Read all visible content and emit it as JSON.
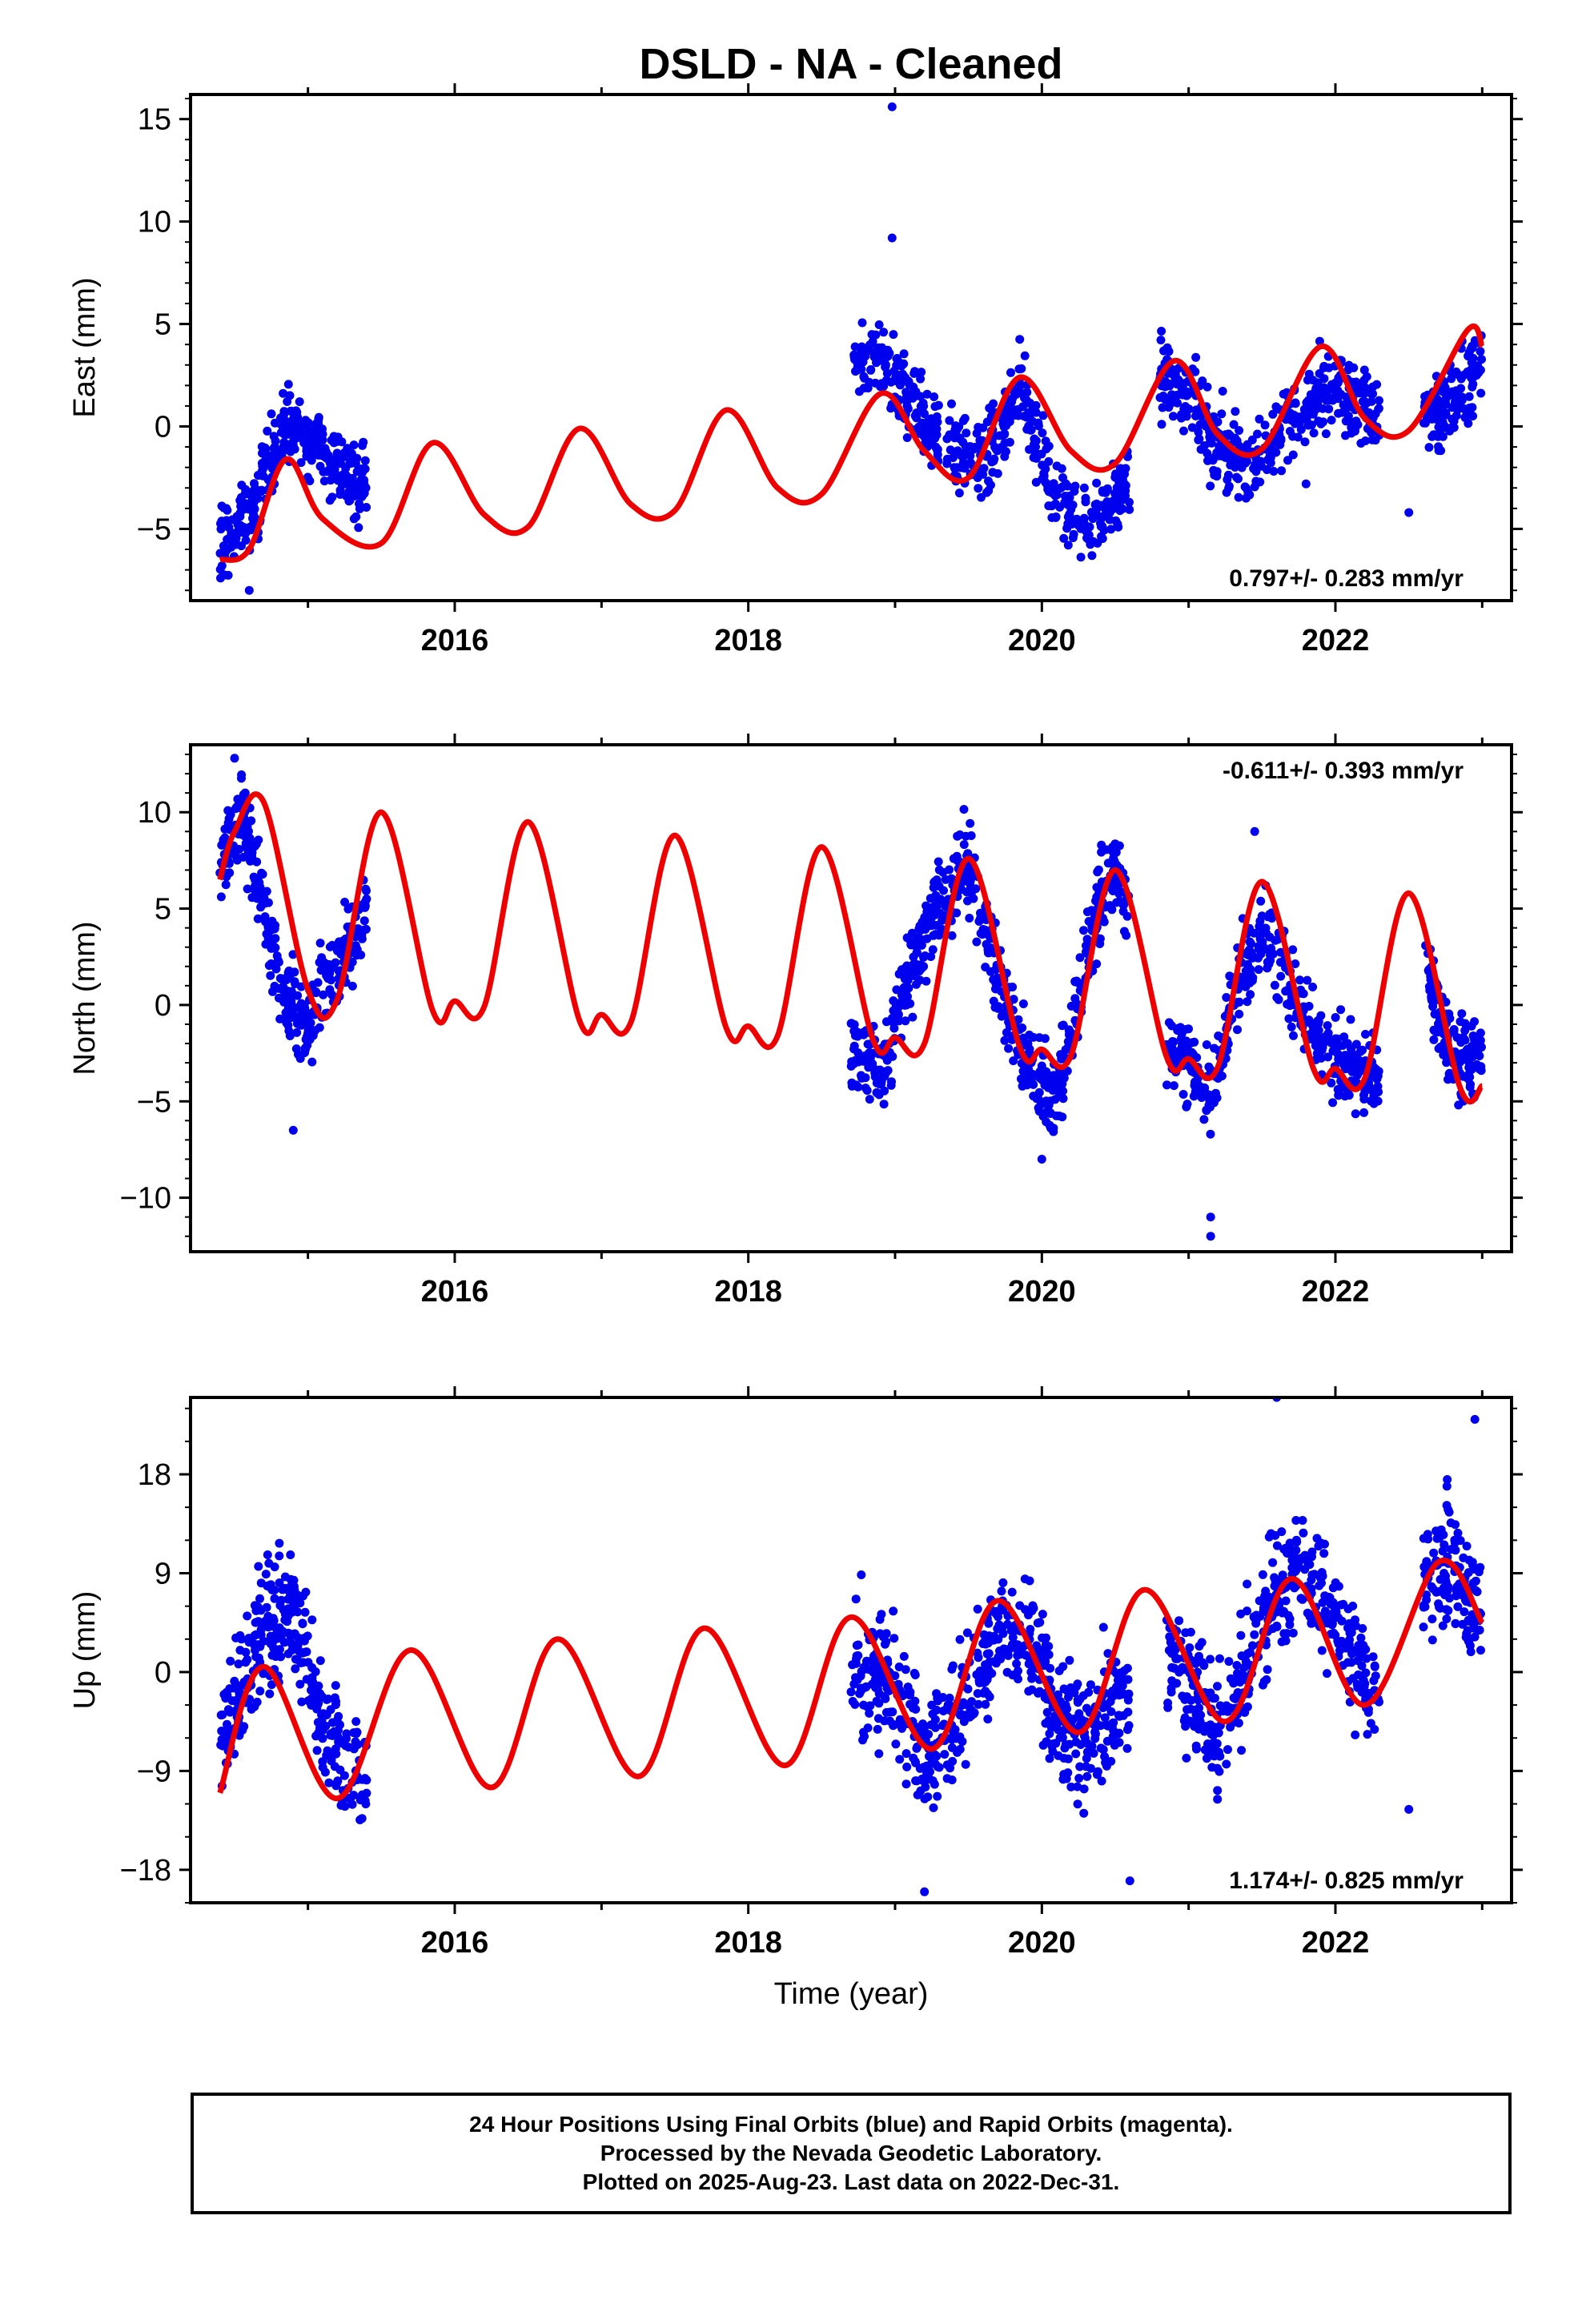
{
  "title": "DSLD  - NA - Cleaned",
  "colors": {
    "data": "#0000ee",
    "model": "#ee0000",
    "frame": "#000000"
  },
  "chart_data": [
    {
      "type": "scatter",
      "ylabel": "East (mm)",
      "xlabel": "",
      "ylim": [
        -8.5,
        16.2
      ],
      "yticks": [
        -5,
        0,
        5,
        10,
        15
      ],
      "xlim": [
        2014.2,
        2023.2
      ],
      "xticks": [
        2016,
        2018,
        2020,
        2022
      ],
      "rate": "0.797+/- 0.283 mm/yr",
      "rate_position": "bottom-right",
      "model": {
        "x": [
          2014.4,
          2014.6,
          2014.85,
          2015.1,
          2015.5,
          2015.85,
          2016.2,
          2016.5,
          2016.85,
          2017.2,
          2017.5,
          2017.85,
          2018.2,
          2018.5,
          2018.9,
          2019.2,
          2019.5,
          2019.85,
          2020.2,
          2020.5,
          2020.9,
          2021.2,
          2021.5,
          2021.9,
          2022.2,
          2022.5,
          2022.9,
          2023.0
        ],
        "y": [
          -6.5,
          -6.0,
          -1.6,
          -4.5,
          -5.7,
          -0.8,
          -4.3,
          -4.9,
          -0.1,
          -3.8,
          -4.1,
          0.8,
          -3.0,
          -3.3,
          1.6,
          -1.2,
          -2.5,
          2.4,
          -1.2,
          -1.8,
          3.2,
          -0.4,
          -1.1,
          3.9,
          0.4,
          -0.2,
          4.7,
          3.9
        ]
      },
      "segments": [
        {
          "x0": 2014.4,
          "x1": 2015.4,
          "center": [
            2014.4,
            -5.5,
            2014.6,
            -4.5,
            2014.85,
            0.0,
            2015.1,
            -1.0,
            2015.4,
            -3.0
          ],
          "spread": 1.3,
          "n": 330
        },
        {
          "x0": 2018.72,
          "x1": 2019.3,
          "center": [
            2018.72,
            3.0,
            2018.9,
            3.5,
            2019.1,
            1.2,
            2019.3,
            -0.5
          ],
          "spread": 1.3,
          "n": 170
        },
        {
          "x0": 2019.35,
          "x1": 2020.6,
          "center": [
            2019.35,
            -1.0,
            2019.6,
            -2.0,
            2019.85,
            2.0,
            2020.1,
            -3.8,
            2020.35,
            -4.5,
            2020.6,
            -2.8
          ],
          "spread": 1.3,
          "n": 330
        },
        {
          "x0": 2020.8,
          "x1": 2022.3,
          "center": [
            2020.8,
            2.5,
            2021.0,
            1.5,
            2021.2,
            -1.0,
            2021.45,
            -2.0,
            2021.7,
            0.5,
            2022.0,
            2.0,
            2022.3,
            0.5
          ],
          "spread": 1.4,
          "n": 420
        },
        {
          "x0": 2022.6,
          "x1": 2023.0,
          "center": [
            2022.6,
            0.5,
            2022.8,
            1.5,
            2023.0,
            3.0
          ],
          "spread": 1.3,
          "n": 140
        }
      ],
      "outliers": [
        [
          2014.6,
          -8.0
        ],
        [
          2018.98,
          15.6
        ],
        [
          2018.98,
          9.2
        ],
        [
          2021.8,
          -2.8
        ],
        [
          2022.5,
          -4.2
        ]
      ]
    },
    {
      "type": "scatter",
      "ylabel": "North (mm)",
      "xlabel": "",
      "ylim": [
        -12.8,
        13.5
      ],
      "yticks": [
        -10,
        -5,
        0,
        5,
        10
      ],
      "xlim": [
        2014.2,
        2023.2
      ],
      "xticks": [
        2016,
        2018,
        2020,
        2022
      ],
      "rate": "-0.611+/- 0.393 mm/yr",
      "rate_position": "top-right",
      "model": {
        "x": [
          2014.4,
          2014.5,
          2014.7,
          2015.0,
          2015.2,
          2015.5,
          2015.85,
          2016.0,
          2016.2,
          2016.5,
          2016.85,
          2017.0,
          2017.2,
          2017.5,
          2017.85,
          2018.0,
          2018.2,
          2018.5,
          2018.85,
          2019.0,
          2019.2,
          2019.5,
          2019.85,
          2020.0,
          2020.2,
          2020.5,
          2020.85,
          2021.0,
          2021.2,
          2021.5,
          2021.85,
          2022.0,
          2022.2,
          2022.5,
          2022.85,
          2023.0
        ],
        "y": [
          6.5,
          9.0,
          10.5,
          0.8,
          0.3,
          10.0,
          -0.3,
          0.2,
          -0.1,
          9.5,
          -0.8,
          -0.5,
          -0.9,
          8.8,
          -1.2,
          -1.1,
          -1.6,
          8.2,
          -1.8,
          -1.7,
          -2.0,
          7.6,
          -2.2,
          -2.3,
          -2.6,
          7.0,
          -2.7,
          -2.8,
          -3.2,
          6.4,
          -3.3,
          -3.3,
          -3.8,
          5.8,
          -4.3,
          -4.2
        ]
      },
      "segments": [
        {
          "x0": 2014.4,
          "x1": 2015.4,
          "center": [
            2014.4,
            7.0,
            2014.55,
            10.0,
            2014.7,
            5.0,
            2014.85,
            0.0,
            2015.0,
            -1.0,
            2015.2,
            2.0,
            2015.4,
            5.0
          ],
          "spread": 1.5,
          "n": 330
        },
        {
          "x0": 2018.7,
          "x1": 2019.9,
          "center": [
            2018.7,
            -2.0,
            2018.9,
            -4.0,
            2019.1,
            2.0,
            2019.3,
            5.0,
            2019.5,
            7.5,
            2019.75,
            0.0,
            2019.9,
            -3.0
          ],
          "spread": 1.6,
          "n": 380
        },
        {
          "x0": 2019.9,
          "x1": 2020.6,
          "center": [
            2019.9,
            -3.0,
            2020.1,
            -5.0,
            2020.3,
            3.0,
            2020.5,
            7.0,
            2020.6,
            5.0
          ],
          "spread": 1.6,
          "n": 230
        },
        {
          "x0": 2020.85,
          "x1": 2022.3,
          "center": [
            2020.85,
            -2.0,
            2021.0,
            -3.0,
            2021.15,
            -5.0,
            2021.3,
            0.0,
            2021.5,
            4.0,
            2021.75,
            0.0,
            2022.0,
            -3.0,
            2022.3,
            -3.5
          ],
          "spread": 1.5,
          "n": 420
        },
        {
          "x0": 2022.6,
          "x1": 2023.0,
          "center": [
            2022.6,
            2.0,
            2022.8,
            -2.5,
            2023.0,
            -3.0
          ],
          "spread": 1.4,
          "n": 140
        }
      ],
      "outliers": [
        [
          2014.5,
          12.8
        ],
        [
          2021.15,
          -12.0
        ],
        [
          2021.15,
          -11.0
        ],
        [
          2021.45,
          9.0
        ],
        [
          2020.0,
          -8.0
        ],
        [
          2014.9,
          -6.5
        ]
      ]
    },
    {
      "type": "scatter",
      "ylabel": "Up (mm)",
      "xlabel": "Time (year)",
      "ylim": [
        -21,
        25
      ],
      "yticks": [
        -18,
        -9,
        0,
        9,
        18
      ],
      "xlim": [
        2014.2,
        2023.2
      ],
      "xticks": [
        2016,
        2018,
        2020,
        2022
      ],
      "rate": "1.174+/- 0.825 mm/yr",
      "rate_position": "bottom-right",
      "model": {
        "x": [
          2014.4,
          2014.7,
          2015.2,
          2015.7,
          2016.25,
          2016.7,
          2017.25,
          2017.7,
          2018.25,
          2018.7,
          2019.25,
          2019.7,
          2020.25,
          2020.7,
          2021.25,
          2021.7,
          2022.2,
          2022.7,
          2023.0
        ],
        "y": [
          -11.0,
          0.5,
          -11.5,
          2.0,
          -10.5,
          3.0,
          -9.5,
          4.0,
          -8.5,
          5.0,
          -7.0,
          6.5,
          -5.5,
          7.5,
          -4.5,
          8.5,
          -3.0,
          10.0,
          4.5
        ]
      },
      "segments": [
        {
          "x0": 2014.4,
          "x1": 2015.4,
          "center": [
            2014.4,
            -6.0,
            2014.7,
            4.0,
            2014.9,
            6.0,
            2015.1,
            -5.0,
            2015.4,
            -10.0
          ],
          "spread": 4.0,
          "n": 330
        },
        {
          "x0": 2018.7,
          "x1": 2019.9,
          "center": [
            2018.7,
            1.0,
            2018.95,
            0.0,
            2019.2,
            -8.0,
            2019.5,
            -2.0,
            2019.75,
            4.0,
            2019.9,
            2.0
          ],
          "spread": 4.0,
          "n": 360
        },
        {
          "x0": 2019.9,
          "x1": 2020.6,
          "center": [
            2019.9,
            2.0,
            2020.1,
            -4.0,
            2020.3,
            -6.0,
            2020.6,
            -2.0
          ],
          "spread": 4.0,
          "n": 230
        },
        {
          "x0": 2020.85,
          "x1": 2022.3,
          "center": [
            2020.85,
            2.0,
            2021.2,
            -6.0,
            2021.5,
            5.0,
            2021.75,
            10.0,
            2022.0,
            5.0,
            2022.3,
            -4.0
          ],
          "spread": 4.0,
          "n": 420
        },
        {
          "x0": 2022.6,
          "x1": 2023.0,
          "center": [
            2022.6,
            8.0,
            2022.8,
            10.0,
            2023.0,
            5.0
          ],
          "spread": 4.0,
          "n": 140
        }
      ],
      "outliers": [
        [
          2021.6,
          25.0
        ],
        [
          2022.95,
          23.0
        ],
        [
          2022.5,
          -12.5
        ],
        [
          2019.2,
          -20.0
        ],
        [
          2020.6,
          -19.0
        ]
      ]
    }
  ],
  "info": {
    "line1": "24 Hour Positions Using Final Orbits (blue) and Rapid Orbits (magenta).",
    "line2": "Processed by the Nevada Geodetic Laboratory.",
    "line3": "Plotted on 2025-Aug-23. Last data on 2022-Dec-31."
  }
}
